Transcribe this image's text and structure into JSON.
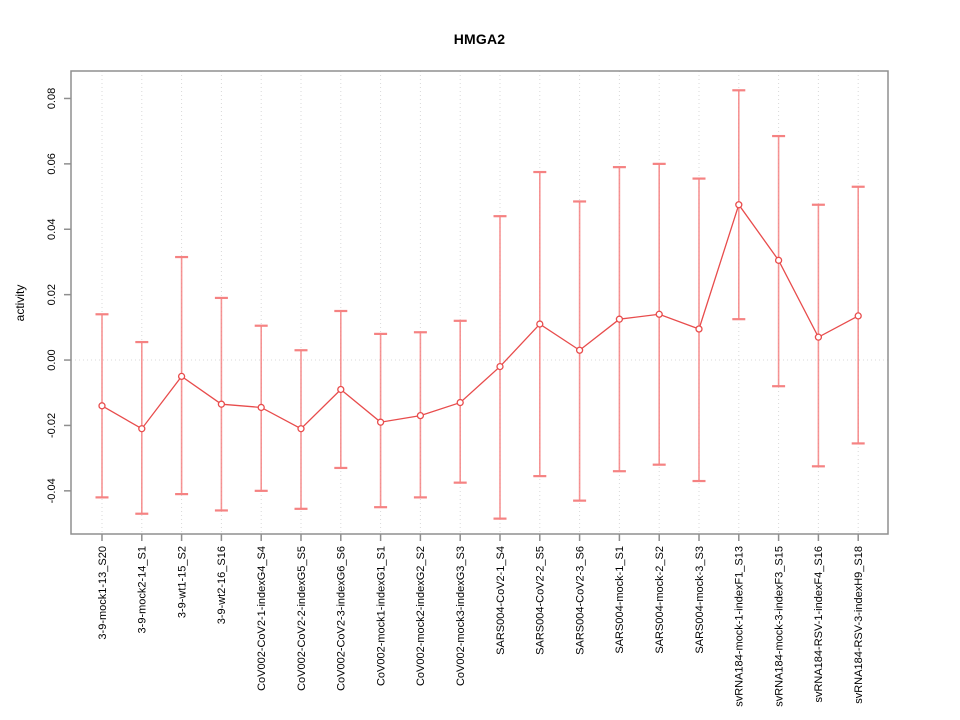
{
  "chart_data": {
    "type": "line",
    "title": "HMGA2",
    "ylabel": "activity",
    "xlabel": "",
    "ylim": [
      -0.0532,
      0.0884
    ],
    "yticks": [
      -0.04,
      -0.02,
      0,
      0.02,
      0.04,
      0.06,
      0.08
    ],
    "ytick_labels": [
      "-0.04",
      "-0.02",
      "0.00",
      "0.02",
      "0.04",
      "0.06",
      "0.08"
    ],
    "grid": "dotted vertical gridline per category plus dotted horizontal line at y=0",
    "legend": "none",
    "marker": "open-circle",
    "error_bars": true,
    "categories": [
      "3-9-mock1-13_S20",
      "3-9-mock2-14_S1",
      "3-9-wt1-15_S2",
      "3-9-wt2-16_S16",
      "CoV002-CoV2-1-indexG4_S4",
      "CoV002-CoV2-2-indexG5_S5",
      "CoV002-CoV2-3-indexG6_S6",
      "CoV002-mock1-indexG1_S1",
      "CoV002-mock2-indexG2_S2",
      "CoV002-mock3-indexG3_S3",
      "SARS004-CoV2-1_S4",
      "SARS004-CoV2-2_S5",
      "SARS004-CoV2-3_S6",
      "SARS004-mock-1_S1",
      "SARS004-mock-2_S2",
      "SARS004-mock-3_S3",
      "svRNA184-mock-1-indexF1_S13",
      "svRNA184-mock-3-indexF3_S15",
      "svRNA184-RSV-1-indexF4_S16",
      "svRNA184-RSV-3-indexH9_S18"
    ],
    "series": [
      {
        "name": "activity",
        "values": [
          -0.014,
          -0.021,
          -0.005,
          -0.0135,
          -0.0145,
          -0.021,
          -0.009,
          -0.019,
          -0.017,
          -0.013,
          -0.002,
          0.011,
          0.003,
          0.0125,
          0.014,
          0.0095,
          0.0475,
          0.0305,
          0.007,
          0.0135
        ],
        "upper": [
          0.014,
          0.0055,
          0.0315,
          0.019,
          0.0105,
          0.003,
          0.015,
          0.008,
          0.0085,
          0.012,
          0.044,
          0.0575,
          0.0485,
          0.059,
          0.06,
          0.0555,
          0.0825,
          0.0685,
          0.0475,
          0.053
        ],
        "lower": [
          -0.042,
          -0.047,
          -0.041,
          -0.046,
          -0.04,
          -0.0455,
          -0.033,
          -0.045,
          -0.042,
          -0.0375,
          -0.0485,
          -0.0355,
          -0.043,
          -0.034,
          -0.032,
          -0.037,
          0.0125,
          -0.008,
          -0.0325,
          -0.0255
        ]
      }
    ],
    "colors": {
      "point": "#e84c4c",
      "error_bar": "#f58282",
      "grid": "#d9d9d9",
      "frame": "#8f8f8f",
      "text": "#000000",
      "background": "#ffffff"
    }
  }
}
